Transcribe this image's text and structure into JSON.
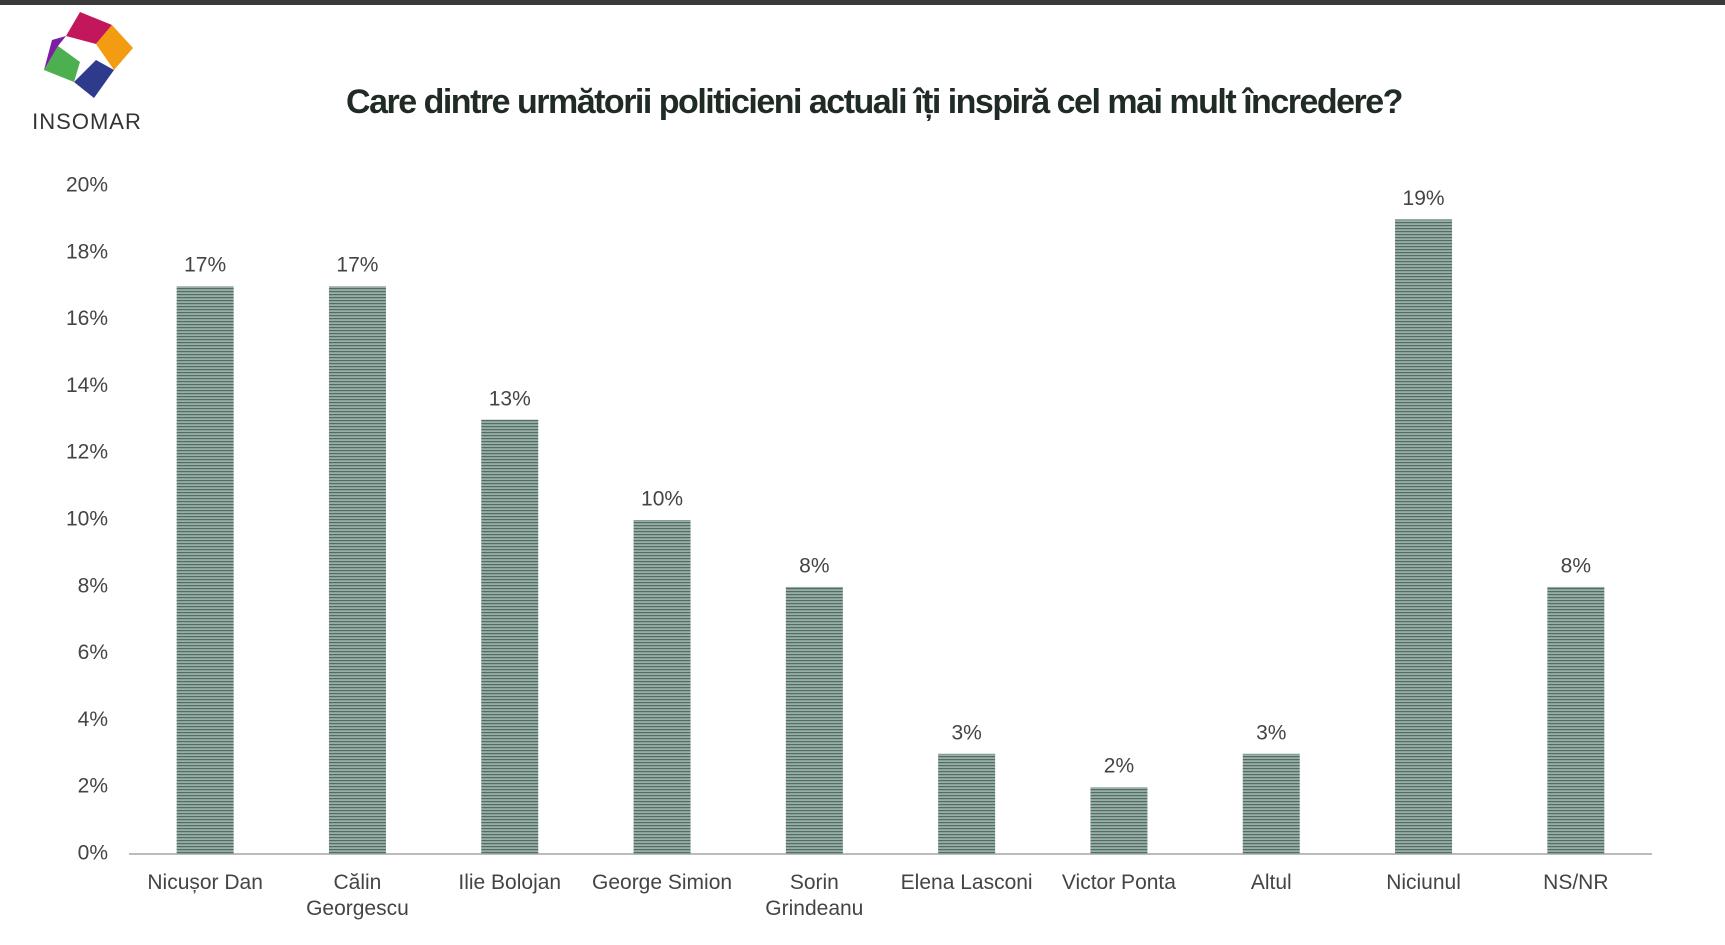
{
  "logo": {
    "text": "INSOMAR"
  },
  "chart_data": {
    "type": "bar",
    "title": "Care dintre următorii politicieni actuali îți inspiră cel mai mult încredere?",
    "categories": [
      "Nicușor Dan",
      "Călin Georgescu",
      "Ilie Bolojan",
      "George Simion",
      "Sorin Grindeanu",
      "Elena Lasconi",
      "Victor Ponta",
      "Altul",
      "Niciunul",
      "NS/NR"
    ],
    "values": [
      17,
      17,
      13,
      10,
      8,
      3,
      2,
      3,
      19,
      8
    ],
    "value_labels": [
      "17%",
      "17%",
      "13%",
      "10%",
      "8%",
      "3%",
      "2%",
      "3%",
      "19%",
      "8%"
    ],
    "color": "#4f6e64",
    "ylim": [
      0,
      20
    ],
    "yticks": [
      {
        "value": 0,
        "label": "0%"
      },
      {
        "value": 2,
        "label": "2%"
      },
      {
        "value": 4,
        "label": "4%"
      },
      {
        "value": 6,
        "label": "6%"
      },
      {
        "value": 8,
        "label": "8%"
      },
      {
        "value": 10,
        "label": "10%"
      },
      {
        "value": 12,
        "label": "12%"
      },
      {
        "value": 14,
        "label": "14%"
      },
      {
        "value": 16,
        "label": "16%"
      },
      {
        "value": 18,
        "label": "18%"
      },
      {
        "value": 20,
        "label": "20%"
      }
    ]
  }
}
